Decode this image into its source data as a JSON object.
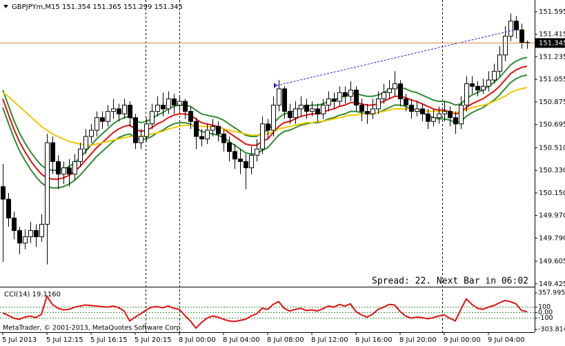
{
  "chart_data": {
    "type": "candlestick",
    "title": "GBPJPYm,M15  151.354 151.365 151.299 151.345",
    "categories": [
      "5 Jul 2013",
      null,
      null,
      null,
      null,
      null,
      null,
      null,
      "5 Jul 12:15",
      null,
      null,
      null,
      null,
      null,
      null,
      null,
      "5 Jul 16:15",
      null,
      null,
      null,
      null,
      null,
      null,
      null,
      "5 Jul 20:15",
      null,
      null,
      null,
      null,
      null,
      null,
      null,
      "8 Jul 00:00",
      null,
      null,
      null,
      null,
      null,
      null,
      null,
      "8 Jul 04:00",
      null,
      null,
      null,
      null,
      null,
      null,
      null,
      "8 Jul 08:00",
      null,
      null,
      null,
      null,
      null,
      null,
      null,
      "8 Jul 12:00",
      null,
      null,
      null,
      null,
      null,
      null,
      null,
      "8 Jul 16:00",
      null,
      null,
      null,
      null,
      null,
      null,
      null,
      "8 Jul 20:00",
      null,
      null,
      null,
      null,
      null,
      null,
      null,
      "9 Jul 00:00",
      null,
      null,
      null,
      null,
      null,
      null,
      null,
      "9 Jul 04:00",
      null,
      null,
      null,
      null,
      null,
      null,
      null
    ],
    "open": [
      150.2,
      150.1,
      149.95,
      149.85,
      149.75,
      149.8,
      149.85,
      149.8,
      149.9,
      150.55,
      150.4,
      150.3,
      150.35,
      150.3,
      150.4,
      150.5,
      150.6,
      150.65,
      150.75,
      150.72,
      150.8,
      150.82,
      150.78,
      150.85,
      150.75,
      150.55,
      150.6,
      150.7,
      150.8,
      150.85,
      150.82,
      150.9,
      150.85,
      150.88,
      150.8,
      150.72,
      150.6,
      150.58,
      150.65,
      150.68,
      150.62,
      150.55,
      150.48,
      150.42,
      150.4,
      150.35,
      150.45,
      150.5,
      150.7,
      150.65,
      150.85,
      150.98,
      150.8,
      150.75,
      150.82,
      150.85,
      150.8,
      150.82,
      150.78,
      150.85,
      150.9,
      150.88,
      150.95,
      150.92,
      150.97,
      150.85,
      150.8,
      150.78,
      150.82,
      150.9,
      150.95,
      150.98,
      151.02,
      150.9,
      150.85,
      150.8,
      150.82,
      150.78,
      150.72,
      150.75,
      150.78,
      150.8,
      150.75,
      150.7,
      150.85,
      151.02,
      151.0,
      150.97,
      151.0,
      151.05,
      151.12,
      151.25,
      151.4,
      151.52,
      151.45,
      151.35
    ],
    "high": [
      150.38,
      150.15,
      150.0,
      149.88,
      149.86,
      149.92,
      149.9,
      149.98,
      150.62,
      150.6,
      150.45,
      150.4,
      150.42,
      150.46,
      150.55,
      150.66,
      150.7,
      150.8,
      150.8,
      150.85,
      150.9,
      150.86,
      150.9,
      150.88,
      150.78,
      150.66,
      150.75,
      150.86,
      150.92,
      150.95,
      150.96,
      150.94,
      150.93,
      150.9,
      150.84,
      150.75,
      150.66,
      150.7,
      150.74,
      150.72,
      150.66,
      150.6,
      150.54,
      150.5,
      150.46,
      150.52,
      150.58,
      150.76,
      150.74,
      150.92,
      151.05,
      151.0,
      150.86,
      150.88,
      150.92,
      150.9,
      150.88,
      150.86,
      150.9,
      150.96,
      150.95,
      151.0,
      151.0,
      151.04,
      151.0,
      150.9,
      150.86,
      150.9,
      150.96,
      151.02,
      151.05,
      151.12,
      151.05,
      150.94,
      150.9,
      150.88,
      150.86,
      150.82,
      150.82,
      150.84,
      150.88,
      150.84,
      150.8,
      150.92,
      151.08,
      151.08,
      151.04,
      151.06,
      151.12,
      151.18,
      151.32,
      151.48,
      151.58,
      151.56,
      151.5,
      151.365
    ],
    "low": [
      149.6,
      149.88,
      149.78,
      149.66,
      149.7,
      149.75,
      149.72,
      149.76,
      149.58,
      150.3,
      150.18,
      150.22,
      150.2,
      150.25,
      150.36,
      150.46,
      150.55,
      150.6,
      150.66,
      150.68,
      150.74,
      150.72,
      150.74,
      150.68,
      150.5,
      150.5,
      150.56,
      150.66,
      150.76,
      150.76,
      150.78,
      150.78,
      150.8,
      150.74,
      150.66,
      150.5,
      150.52,
      150.54,
      150.6,
      150.56,
      150.48,
      150.4,
      150.34,
      150.3,
      150.18,
      150.3,
      150.4,
      150.46,
      150.58,
      150.6,
      150.8,
      150.74,
      150.7,
      150.7,
      150.76,
      150.74,
      150.76,
      150.72,
      150.74,
      150.8,
      150.82,
      150.84,
      150.86,
      150.88,
      150.8,
      150.72,
      150.7,
      150.74,
      150.78,
      150.86,
      150.9,
      150.92,
      150.84,
      150.8,
      150.74,
      150.76,
      150.72,
      150.66,
      150.68,
      150.7,
      150.72,
      150.68,
      150.62,
      150.66,
      150.8,
      150.94,
      150.92,
      150.94,
      150.96,
      151.02,
      151.08,
      151.2,
      151.36,
      151.38,
      151.3,
      151.299
    ],
    "close": [
      150.1,
      149.95,
      149.85,
      149.75,
      149.8,
      149.85,
      149.8,
      149.9,
      150.55,
      150.4,
      150.3,
      150.35,
      150.3,
      150.4,
      150.5,
      150.6,
      150.65,
      150.75,
      150.72,
      150.8,
      150.82,
      150.78,
      150.85,
      150.75,
      150.55,
      150.6,
      150.7,
      150.8,
      150.85,
      150.82,
      150.9,
      150.85,
      150.88,
      150.8,
      150.72,
      150.6,
      150.58,
      150.65,
      150.68,
      150.62,
      150.55,
      150.48,
      150.42,
      150.4,
      150.35,
      150.45,
      150.5,
      150.7,
      150.65,
      150.85,
      150.98,
      150.8,
      150.75,
      150.82,
      150.85,
      150.8,
      150.82,
      150.78,
      150.85,
      150.9,
      150.88,
      150.95,
      150.92,
      150.97,
      150.85,
      150.8,
      150.78,
      150.82,
      150.9,
      150.95,
      150.98,
      151.02,
      150.9,
      150.85,
      150.8,
      150.82,
      150.78,
      150.72,
      150.75,
      150.78,
      150.8,
      150.75,
      150.7,
      150.85,
      151.02,
      151.0,
      150.97,
      151.0,
      151.05,
      151.12,
      151.25,
      151.4,
      151.52,
      151.45,
      151.35,
      151.345
    ],
    "up_color": "#ffffff",
    "down_color": "#000000",
    "ylim": [
      149.402,
      151.688
    ],
    "yticks": [
      151.595,
      151.415,
      151.235,
      151.055,
      150.875,
      150.695,
      {
        "value": 150.51,
        "label": "150.510"
      },
      {
        "value": 150.33,
        "label": "150.330"
      },
      {
        "value": 150.15,
        "label": "150.150"
      },
      {
        "value": 149.97,
        "label": "149.970"
      },
      {
        "value": 149.79,
        "label": "149.790"
      },
      149.605,
      149.425
    ],
    "price_line": {
      "value": 151.345,
      "color": "#c8824a"
    },
    "series": [
      {
        "color": "#2e8b2e",
        "values": [
          150.97,
          150.85,
          150.73,
          150.63,
          150.55,
          150.48,
          150.42,
          150.37,
          150.34,
          150.33,
          150.33,
          150.34,
          150.36,
          150.39,
          150.43,
          150.48,
          150.53,
          150.58,
          150.62,
          150.66,
          150.7,
          150.73,
          150.75,
          150.76,
          150.73,
          150.71,
          150.72,
          150.74,
          150.77,
          150.79,
          150.82,
          150.84,
          150.85,
          150.85,
          150.84,
          150.81,
          150.78,
          150.77,
          150.76,
          150.75,
          150.73,
          150.7,
          150.67,
          150.64,
          150.61,
          150.6,
          150.6,
          150.63,
          150.65,
          150.7,
          150.75,
          150.78,
          150.79,
          150.81,
          150.83,
          150.84,
          150.85,
          150.85,
          150.86,
          150.88,
          150.89,
          150.91,
          150.92,
          150.94,
          150.94,
          150.93,
          150.92,
          150.92,
          150.93,
          150.95,
          150.97,
          150.99,
          150.99,
          150.98,
          150.96,
          150.95,
          150.93,
          150.91,
          150.89,
          150.88,
          150.88,
          150.87,
          150.85,
          150.86,
          150.9,
          150.93,
          150.95,
          150.97,
          151.0,
          151.03,
          151.07,
          151.12,
          151.17,
          151.2,
          151.22,
          151.23
        ]
      },
      {
        "color": "#e01010",
        "values": [
          150.9,
          150.78,
          150.66,
          150.56,
          150.48,
          150.41,
          150.35,
          150.3,
          150.27,
          150.26,
          150.26,
          150.27,
          150.29,
          150.32,
          150.36,
          150.41,
          150.46,
          150.51,
          150.55,
          150.59,
          150.63,
          150.66,
          150.68,
          150.69,
          150.66,
          150.64,
          150.65,
          150.67,
          150.7,
          150.72,
          150.75,
          150.77,
          150.78,
          150.78,
          150.77,
          150.74,
          150.71,
          150.7,
          150.69,
          150.68,
          150.66,
          150.63,
          150.6,
          150.57,
          150.54,
          150.53,
          150.53,
          150.56,
          150.58,
          150.63,
          150.68,
          150.71,
          150.72,
          150.74,
          150.76,
          150.77,
          150.78,
          150.78,
          150.79,
          150.81,
          150.82,
          150.84,
          150.85,
          150.87,
          150.87,
          150.86,
          150.85,
          150.85,
          150.86,
          150.88,
          150.9,
          150.92,
          150.92,
          150.91,
          150.89,
          150.88,
          150.86,
          150.84,
          150.82,
          150.81,
          150.81,
          150.8,
          150.78,
          150.79,
          150.83,
          150.86,
          150.88,
          150.9,
          150.93,
          150.96,
          151.0,
          151.05,
          151.1,
          151.13,
          151.15,
          151.16
        ]
      },
      {
        "color": "#2e8b2e",
        "values": [
          150.83,
          150.71,
          150.59,
          150.49,
          150.41,
          150.34,
          150.28,
          150.23,
          150.2,
          150.19,
          150.19,
          150.2,
          150.22,
          150.25,
          150.29,
          150.34,
          150.39,
          150.44,
          150.48,
          150.52,
          150.56,
          150.59,
          150.61,
          150.62,
          150.59,
          150.57,
          150.58,
          150.6,
          150.63,
          150.65,
          150.68,
          150.7,
          150.71,
          150.71,
          150.7,
          150.67,
          150.64,
          150.63,
          150.62,
          150.61,
          150.59,
          150.56,
          150.53,
          150.5,
          150.47,
          150.46,
          150.46,
          150.49,
          150.51,
          150.56,
          150.61,
          150.64,
          150.65,
          150.67,
          150.69,
          150.7,
          150.71,
          150.71,
          150.72,
          150.74,
          150.75,
          150.77,
          150.78,
          150.8,
          150.8,
          150.79,
          150.78,
          150.78,
          150.79,
          150.81,
          150.83,
          150.85,
          150.85,
          150.84,
          150.82,
          150.81,
          150.79,
          150.77,
          150.75,
          150.74,
          150.74,
          150.73,
          150.71,
          150.72,
          150.76,
          150.79,
          150.81,
          150.83,
          150.86,
          150.89,
          150.93,
          150.98,
          151.03,
          151.06,
          151.08,
          151.09
        ]
      },
      {
        "color": "#f0c800",
        "values": [
          150.95,
          150.92,
          150.88,
          150.84,
          150.8,
          150.76,
          150.72,
          150.68,
          150.65,
          150.62,
          150.6,
          150.58,
          150.56,
          150.55,
          150.54,
          150.53,
          150.53,
          150.54,
          150.55,
          150.56,
          150.57,
          150.58,
          150.59,
          150.6,
          150.6,
          150.6,
          150.61,
          150.62,
          150.63,
          150.64,
          150.66,
          150.67,
          150.68,
          150.69,
          150.69,
          150.69,
          150.68,
          150.68,
          150.67,
          150.67,
          150.66,
          150.65,
          150.64,
          150.63,
          150.62,
          150.61,
          150.61,
          150.62,
          150.62,
          150.64,
          150.66,
          150.67,
          150.68,
          150.69,
          150.7,
          150.71,
          150.71,
          150.72,
          150.72,
          150.73,
          150.74,
          150.75,
          150.76,
          150.77,
          150.77,
          150.78,
          150.78,
          150.78,
          150.79,
          150.8,
          150.81,
          150.82,
          150.82,
          150.82,
          150.82,
          150.81,
          150.81,
          150.8,
          150.8,
          150.8,
          150.8,
          150.8,
          150.79,
          150.8,
          150.81,
          150.83,
          150.84,
          150.85,
          150.86,
          150.88,
          150.9,
          150.92,
          150.95,
          150.97,
          150.98,
          150.99
        ]
      }
    ],
    "status": "Spread: 22. Next Bar in 06:02",
    "indicator": {
      "title": "CCI(14) 19.1160",
      "color": "#e01010",
      "values": [
        0,
        -50,
        -100,
        -120,
        -80,
        -60,
        -90,
        -30,
        300,
        150,
        80,
        50,
        60,
        100,
        120,
        140,
        130,
        120,
        110,
        100,
        120,
        90,
        30,
        -150,
        -80,
        -20,
        50,
        100,
        110,
        90,
        120,
        80,
        60,
        -50,
        -150,
        -280,
        -180,
        -100,
        -60,
        -80,
        -120,
        -150,
        -160,
        -140,
        -120,
        -60,
        -20,
        80,
        60,
        150,
        200,
        80,
        30,
        60,
        80,
        40,
        50,
        30,
        70,
        120,
        100,
        150,
        120,
        160,
        20,
        -40,
        -80,
        -30,
        60,
        100,
        150,
        140,
        20,
        -60,
        -100,
        -80,
        -90,
        -110,
        -90,
        -60,
        -40,
        -100,
        -150,
        60,
        250,
        150,
        80,
        60,
        100,
        130,
        180,
        220,
        200,
        160,
        40,
        19.116
      ],
      "ylim": [
        -303.8143,
        357.995
      ],
      "yticks": [
        357.995,
        100,
        {
          "value": 0,
          "label": "0.00"
        },
        -100,
        -303.8143
      ],
      "levels": [
        100,
        0,
        -100
      ],
      "level_color": "#2e8b2e"
    },
    "copyright": "MetaTrader, © 2001-2013, MetaQuotes Software Corp."
  }
}
